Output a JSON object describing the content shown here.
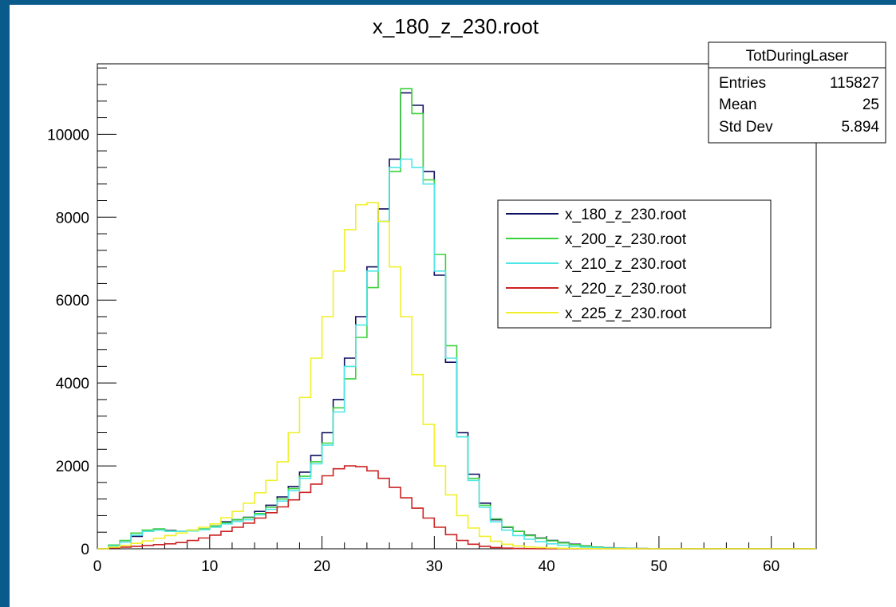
{
  "colors": {
    "frame_border": "#0b5a8c",
    "background": "#ffffff"
  },
  "chart_data": {
    "type": "line",
    "style": "step-histogram",
    "title": "x_180_z_230.root",
    "xlabel": "",
    "ylabel": "",
    "xlim": [
      0,
      64
    ],
    "ylim": [
      0,
      11700
    ],
    "x_ticks": [
      0,
      10,
      20,
      30,
      40,
      50,
      60
    ],
    "y_ticks": [
      0,
      2000,
      4000,
      6000,
      8000,
      10000
    ],
    "grid": false,
    "bin_width": 1,
    "bin_edges_start": 0,
    "legend": {
      "placement": "center-right"
    },
    "stats_box": {
      "title": "TotDuringLaser",
      "rows": [
        {
          "label": "Entries",
          "value": "115827"
        },
        {
          "label": "Mean",
          "value": "25"
        },
        {
          "label": "Std Dev",
          "value": "5.894"
        }
      ]
    },
    "series": [
      {
        "name": "x_180_z_230.root",
        "color": "#0d0d5e",
        "values": [
          0,
          80,
          160,
          300,
          420,
          470,
          440,
          420,
          440,
          470,
          550,
          650,
          700,
          760,
          900,
          1050,
          1250,
          1500,
          1850,
          2250,
          2800,
          3600,
          4600,
          5600,
          6800,
          8200,
          9400,
          11000,
          10700,
          9100,
          6600,
          4500,
          2800,
          1800,
          1100,
          700,
          520,
          420,
          330,
          260,
          200,
          150,
          110,
          70,
          40,
          25,
          15,
          10,
          6,
          4,
          3,
          2,
          1,
          1,
          0,
          0,
          0,
          0,
          0,
          0,
          0,
          0,
          0,
          0
        ]
      },
      {
        "name": "x_200_z_230.root",
        "color": "#3bd13b",
        "values": [
          0,
          90,
          200,
          380,
          450,
          480,
          430,
          420,
          450,
          480,
          550,
          630,
          700,
          750,
          850,
          1000,
          1200,
          1450,
          1750,
          2100,
          2550,
          3400,
          4100,
          5100,
          6300,
          7900,
          9100,
          11100,
          10500,
          8900,
          7100,
          4900,
          2700,
          1700,
          1050,
          720,
          530,
          420,
          320,
          250,
          190,
          140,
          100,
          65,
          40,
          22,
          14,
          9,
          6,
          4,
          3,
          2,
          1,
          1,
          0,
          0,
          0,
          0,
          0,
          0,
          0,
          0,
          0,
          0
        ]
      },
      {
        "name": "x_210_z_230.root",
        "color": "#4ee6e6",
        "values": [
          0,
          70,
          160,
          330,
          420,
          450,
          420,
          420,
          430,
          460,
          520,
          600,
          660,
          700,
          820,
          950,
          1150,
          1400,
          1700,
          2050,
          2500,
          3300,
          4400,
          5400,
          6700,
          7900,
          9200,
          9400,
          9200,
          8800,
          6700,
          4600,
          2700,
          1650,
          1000,
          650,
          450,
          320,
          230,
          170,
          120,
          85,
          60,
          40,
          25,
          15,
          9,
          6,
          4,
          3,
          2,
          1,
          1,
          0,
          0,
          0,
          0,
          0,
          0,
          0,
          0,
          0,
          0,
          0
        ]
      },
      {
        "name": "x_220_z_230.root",
        "color": "#cc2222",
        "values": [
          0,
          20,
          40,
          60,
          80,
          100,
          120,
          150,
          200,
          260,
          330,
          420,
          520,
          620,
          740,
          870,
          1010,
          1180,
          1360,
          1560,
          1760,
          1930,
          2000,
          1980,
          1880,
          1700,
          1480,
          1230,
          980,
          740,
          520,
          340,
          200,
          110,
          60,
          30,
          15,
          8,
          4,
          2,
          1,
          0,
          0,
          0,
          0,
          0,
          0,
          0,
          0,
          0,
          0,
          0,
          0,
          0,
          0,
          0,
          0,
          0,
          0,
          0,
          0,
          0,
          0,
          0
        ]
      },
      {
        "name": "x_225_z_230.root",
        "color": "#f0f02a",
        "values": [
          0,
          40,
          80,
          130,
          190,
          250,
          320,
          380,
          450,
          520,
          600,
          750,
          900,
          1100,
          1350,
          1650,
          2100,
          2800,
          3650,
          4600,
          5600,
          6700,
          7700,
          8300,
          8350,
          7900,
          6800,
          5600,
          4200,
          3000,
          2000,
          1300,
          800,
          500,
          300,
          180,
          110,
          70,
          45,
          30,
          20,
          12,
          8,
          5,
          3,
          2,
          1,
          1,
          0,
          0,
          0,
          0,
          0,
          0,
          0,
          0,
          0,
          0,
          0,
          0,
          0,
          0,
          0,
          0
        ]
      }
    ]
  }
}
